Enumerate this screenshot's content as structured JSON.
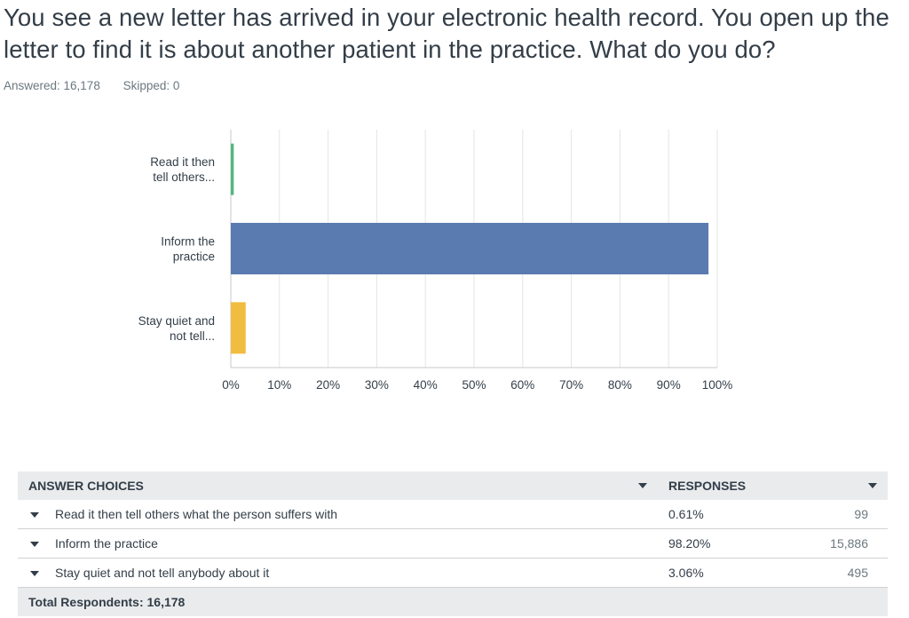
{
  "question": {
    "title": "You see a new letter has arrived in your electronic health record. You open up the letter to find it is about another patient in the practice. What do you do?",
    "answered_label": "Answered: 16,178",
    "skipped_label": "Skipped: 0"
  },
  "chart_data": {
    "type": "bar",
    "orientation": "horizontal",
    "categories": [
      "Read it then tell others...",
      "Inform the practice",
      "Stay quiet and not tell..."
    ],
    "values": [
      0.61,
      98.2,
      3.06
    ],
    "colors": [
      "#54b77e",
      "#5a7bb0",
      "#f1bd3e"
    ],
    "xlim": [
      0,
      100
    ],
    "x_ticks": [
      "0%",
      "10%",
      "20%",
      "30%",
      "40%",
      "50%",
      "60%",
      "70%",
      "80%",
      "90%",
      "100%"
    ],
    "grid": true
  },
  "table": {
    "header_choices": "ANSWER CHOICES",
    "header_responses": "RESPONSES",
    "rows": [
      {
        "choice": "Read it then tell others what the person suffers with",
        "percent": "0.61%",
        "count": "99"
      },
      {
        "choice": "Inform the practice",
        "percent": "98.20%",
        "count": "15,886"
      },
      {
        "choice": "Stay quiet and not tell anybody about it",
        "percent": "3.06%",
        "count": "495"
      }
    ],
    "total": "Total Respondents: 16,178"
  }
}
